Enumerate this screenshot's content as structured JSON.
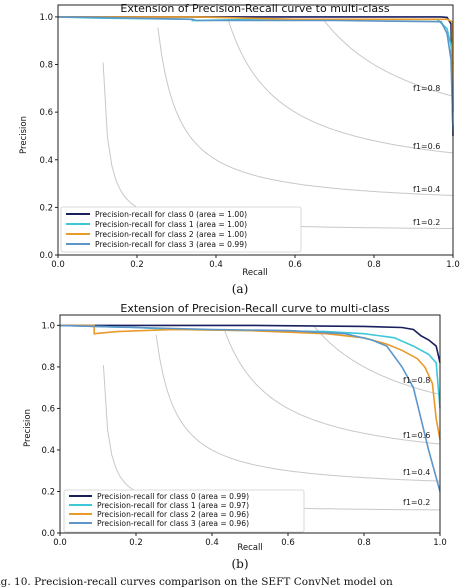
{
  "chart_data": [
    {
      "type": "line",
      "title": "Extension of Precision-Recall curve to multi-class",
      "xlabel": "Recall",
      "ylabel": "Precision",
      "xlim": [
        0.0,
        1.0
      ],
      "ylim": [
        0.0,
        1.05
      ],
      "xticks": [
        "0.0",
        "0.2",
        "0.4",
        "0.6",
        "0.8",
        "1.0"
      ],
      "yticks": [
        "0.0",
        "0.2",
        "0.4",
        "0.6",
        "0.8",
        "1.0"
      ],
      "iso_f1_labels": [
        "f1=0.8",
        "f1=0.6",
        "f1=0.4",
        "f1=0.2"
      ],
      "legend_position": "lower-left",
      "sublabel": "(a)",
      "series": [
        {
          "name": "Precision-recall for class 0 (area = 1.00)",
          "color": "#1a1f5e",
          "points": [
            [
              0,
              1.0
            ],
            [
              0.97,
              1.0
            ],
            [
              0.985,
              0.998
            ],
            [
              0.995,
              0.97
            ],
            [
              1.0,
              0.5
            ]
          ]
        },
        {
          "name": "Precision-recall for class 1 (area = 1.00)",
          "color": "#3ec7d8",
          "points": [
            [
              0,
              1.0
            ],
            [
              0.1,
              0.995
            ],
            [
              0.34,
              0.99
            ],
            [
              0.34,
              0.985
            ],
            [
              0.5,
              0.99
            ],
            [
              0.96,
              0.99
            ],
            [
              0.985,
              0.95
            ],
            [
              0.995,
              0.88
            ],
            [
              1.0,
              0.8
            ]
          ]
        },
        {
          "name": "Precision-recall for class 2 (area = 1.00)",
          "color": "#e89a2a",
          "points": [
            [
              0,
              1.0
            ],
            [
              0.35,
              1.0
            ],
            [
              0.6,
              0.99
            ],
            [
              0.985,
              0.99
            ],
            [
              0.998,
              0.98
            ],
            [
              1.0,
              0.6
            ]
          ]
        },
        {
          "name": "Precision-recall for class 3 (area = 0.99)",
          "color": "#5c96c9",
          "points": [
            [
              0,
              1.0
            ],
            [
              0.1,
              0.998
            ],
            [
              0.34,
              0.99
            ],
            [
              0.35,
              0.985
            ],
            [
              0.7,
              0.985
            ],
            [
              0.97,
              0.98
            ],
            [
              0.985,
              0.93
            ],
            [
              0.995,
              0.82
            ],
            [
              1.0,
              0.52
            ]
          ]
        }
      ]
    },
    {
      "type": "line",
      "title": "Extension of Precision-Recall curve to multi-class",
      "xlabel": "Recall",
      "ylabel": "Precision",
      "xlim": [
        0.0,
        1.0
      ],
      "ylim": [
        0.0,
        1.05
      ],
      "xticks": [
        "0.0",
        "0.2",
        "0.4",
        "0.6",
        "0.8",
        "1.0"
      ],
      "yticks": [
        "0.0",
        "0.2",
        "0.4",
        "0.6",
        "0.8",
        "1.0"
      ],
      "iso_f1_labels": [
        "f1=0.8",
        "f1=0.6",
        "f1=0.4",
        "f1=0.2"
      ],
      "legend_position": "lower-left",
      "sublabel": "(b)",
      "series": [
        {
          "name": "Precision-recall for class 0 (area = 0.99)",
          "color": "#1a1f5e",
          "points": [
            [
              0,
              1.0
            ],
            [
              0.5,
              1.0
            ],
            [
              0.8,
              0.995
            ],
            [
              0.9,
              0.99
            ],
            [
              0.93,
              0.98
            ],
            [
              0.95,
              0.95
            ],
            [
              0.97,
              0.93
            ],
            [
              0.99,
              0.9
            ],
            [
              1.0,
              0.82
            ]
          ]
        },
        {
          "name": "Precision-recall for class 1 (area = 0.97)",
          "color": "#3ec7d8",
          "points": [
            [
              0,
              1.0
            ],
            [
              0.2,
              0.99
            ],
            [
              0.3,
              0.98
            ],
            [
              0.5,
              0.975
            ],
            [
              0.7,
              0.97
            ],
            [
              0.8,
              0.96
            ],
            [
              0.88,
              0.94
            ],
            [
              0.93,
              0.9
            ],
            [
              0.97,
              0.86
            ],
            [
              0.99,
              0.82
            ],
            [
              1.0,
              0.6
            ]
          ]
        },
        {
          "name": "Precision-recall for class 2 (area = 0.96)",
          "color": "#e89a2a",
          "points": [
            [
              0,
              1.0
            ],
            [
              0.09,
              1.0
            ],
            [
              0.09,
              0.96
            ],
            [
              0.15,
              0.97
            ],
            [
              0.3,
              0.98
            ],
            [
              0.5,
              0.975
            ],
            [
              0.7,
              0.96
            ],
            [
              0.8,
              0.94
            ],
            [
              0.86,
              0.91
            ],
            [
              0.9,
              0.88
            ],
            [
              0.94,
              0.84
            ],
            [
              0.96,
              0.8
            ],
            [
              0.98,
              0.72
            ],
            [
              0.99,
              0.55
            ],
            [
              1.0,
              0.45
            ]
          ]
        },
        {
          "name": "Precision-recall for class 3 (area = 0.96)",
          "color": "#5c96c9",
          "points": [
            [
              0,
              1.0
            ],
            [
              0.2,
              0.99
            ],
            [
              0.4,
              0.98
            ],
            [
              0.6,
              0.975
            ],
            [
              0.75,
              0.96
            ],
            [
              0.82,
              0.93
            ],
            [
              0.86,
              0.9
            ],
            [
              0.9,
              0.8
            ],
            [
              0.93,
              0.7
            ],
            [
              0.95,
              0.55
            ],
            [
              0.97,
              0.4
            ],
            [
              0.985,
              0.3
            ],
            [
              1.0,
              0.2
            ]
          ]
        }
      ]
    }
  ],
  "caption": "Fig. 10. Precision-recall curves comparison on the SEFT ConvNet model on"
}
